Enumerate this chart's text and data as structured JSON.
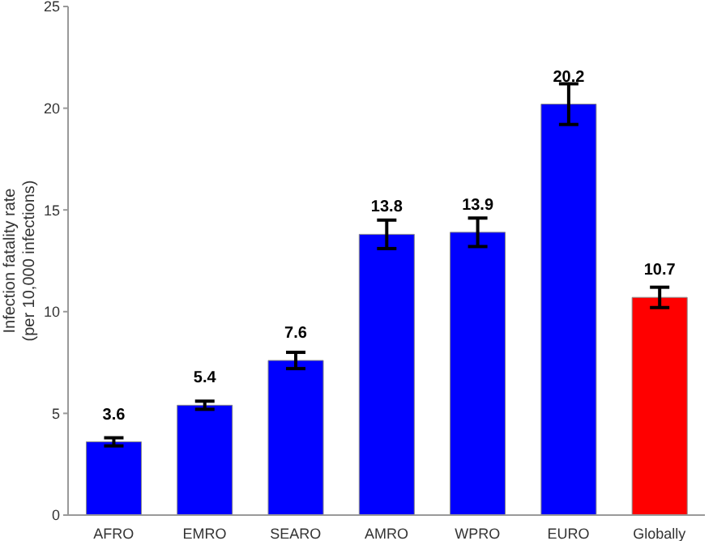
{
  "chart_data": {
    "type": "bar",
    "ylabel": "Infection fatality rate\n(per 10,000 infections)",
    "categories": [
      "AFRO",
      "EMRO",
      "SEARO",
      "AMRO",
      "WPRO",
      "EURO",
      "Globally"
    ],
    "values": [
      3.6,
      5.4,
      7.6,
      13.8,
      13.9,
      20.2,
      10.7
    ],
    "colors": [
      "#0000ff",
      "#0000ff",
      "#0000ff",
      "#0000ff",
      "#0000ff",
      "#0000ff",
      "#ff0000"
    ],
    "errors": [
      0.2,
      0.2,
      0.4,
      0.7,
      0.7,
      1.0,
      0.5
    ],
    "ylim": [
      0,
      25
    ],
    "yticks": [
      0,
      5,
      10,
      15,
      20,
      25
    ],
    "grid": false,
    "data_labels": true
  }
}
